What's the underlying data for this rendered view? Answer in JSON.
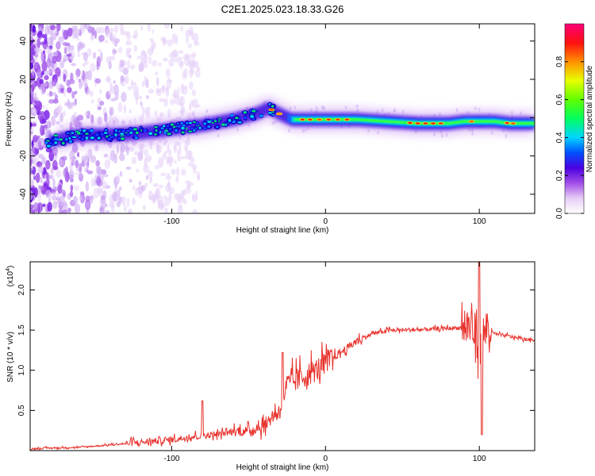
{
  "title": "C2E1.2025.023.18.33.G26",
  "chart_data": [
    {
      "type": "heatmap",
      "xlabel": "Height of straight line (km)",
      "ylabel": "Frequency (Hz)",
      "xlim": [
        -192,
        136
      ],
      "ylim": [
        -50,
        49
      ],
      "xticks": [
        -100,
        0,
        100
      ],
      "xtick_labels": [
        "-100",
        "0",
        "100"
      ],
      "yticks": [
        -40,
        -20,
        0,
        20,
        40
      ],
      "ytick_labels": [
        "-40",
        "-20",
        "0",
        "20",
        "40"
      ],
      "ridge": {
        "description_points_x": [
          -182,
          -160,
          -140,
          -120,
          -100,
          -80,
          -60,
          -45,
          -37,
          -30,
          -22,
          -10,
          0,
          20,
          40,
          60,
          80,
          90,
          100,
          110,
          120,
          136
        ],
        "description_points_y": [
          -13,
          -9,
          -9,
          -8,
          -6,
          -4,
          -1,
          2,
          5,
          2,
          -1,
          -1,
          -1,
          -1,
          -2,
          -3,
          -3,
          -2,
          -2,
          -2,
          -3,
          -3
        ]
      },
      "colorbar": {
        "label": "Normalized spectral amplitude",
        "range": [
          0,
          1
        ],
        "ticks": [
          0.0,
          0.2,
          0.4,
          0.6,
          0.8
        ],
        "tick_labels": [
          "0.0",
          "0.2",
          "0.4",
          "0.6",
          "0.8"
        ]
      }
    },
    {
      "type": "line",
      "xlabel": "Height of straight line (km)",
      "ylabel": "SNR (10 * v/v)",
      "y_multiplier_label": "(x10",
      "y_multiplier_exp": "4",
      "y_multiplier_close": ")",
      "xlim": [
        -192,
        136
      ],
      "ylim": [
        0,
        2.35
      ],
      "xticks": [
        -100,
        0,
        100
      ],
      "xtick_labels": [
        "-100",
        "0",
        "100"
      ],
      "yticks": [
        0.5,
        1.0,
        1.5,
        2.0
      ],
      "ytick_labels": [
        "0.5",
        "1.0",
        "1.5",
        "2.0"
      ],
      "series": [
        {
          "name": "SNR",
          "color": "#e8322c",
          "x": [
            -192,
            -180,
            -160,
            -140,
            -120,
            -100,
            -90,
            -80,
            -70,
            -60,
            -50,
            -40,
            -30,
            -25,
            -20,
            -15,
            -10,
            -5,
            0,
            10,
            20,
            30,
            40,
            50,
            60,
            70,
            80,
            90,
            95,
            100,
            105,
            110,
            120,
            130,
            136
          ],
          "y": [
            0.02,
            0.03,
            0.04,
            0.07,
            0.1,
            0.13,
            0.16,
            0.18,
            0.2,
            0.23,
            0.24,
            0.3,
            0.5,
            0.8,
            0.85,
            0.9,
            0.95,
            1.0,
            1.08,
            1.22,
            1.35,
            1.45,
            1.49,
            1.5,
            1.5,
            1.51,
            1.52,
            1.53,
            1.5,
            1.3,
            1.5,
            1.45,
            1.42,
            1.38,
            1.38
          ]
        }
      ]
    }
  ]
}
